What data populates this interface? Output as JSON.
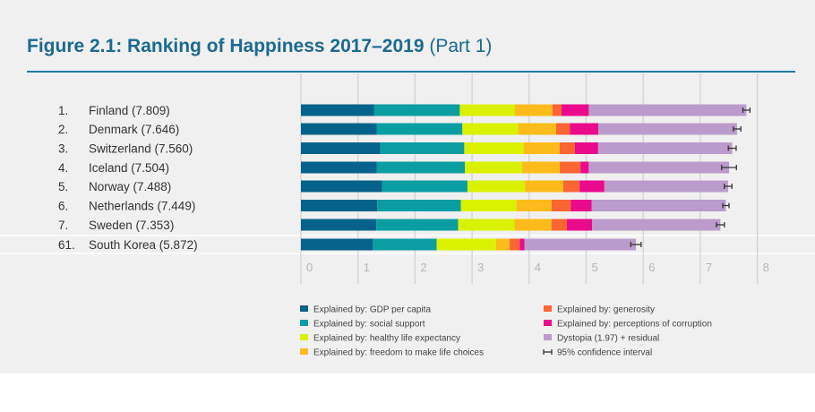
{
  "title": {
    "bold": "Figure 2.1: Ranking of Happiness 2017–2019",
    "light": " (Part 1)"
  },
  "chart_data": {
    "type": "bar",
    "orientation": "horizontal-stacked",
    "title": "Figure 2.1: Ranking of Happiness 2017–2019 (Part 1)",
    "xlabel": "",
    "ylabel": "",
    "xlim": [
      0,
      8
    ],
    "xticks": [
      "0",
      "1",
      "2",
      "3",
      "4",
      "5",
      "6",
      "7",
      "8"
    ],
    "grid": true,
    "legend_position": "bottom",
    "categories": [
      {
        "rank": "1.",
        "label": "Finland (7.809)",
        "score": 7.809,
        "ci": [
          7.747,
          7.871
        ]
      },
      {
        "rank": "2.",
        "label": "Denmark (7.646)",
        "score": 7.646,
        "ci": [
          7.58,
          7.711
        ]
      },
      {
        "rank": "3.",
        "label": "Switzerland (7.560)",
        "score": 7.56,
        "ci": [
          7.491,
          7.629
        ]
      },
      {
        "rank": "4.",
        "label": "Iceland (7.504)",
        "score": 7.504,
        "ci": [
          7.374,
          7.634
        ]
      },
      {
        "rank": "5.",
        "label": "Norway (7.488)",
        "score": 7.488,
        "ci": [
          7.421,
          7.555
        ]
      },
      {
        "rank": "6.",
        "label": "Netherlands (7.449)",
        "score": 7.449,
        "ci": [
          7.394,
          7.504
        ]
      },
      {
        "rank": "7.",
        "label": "Sweden (7.353)",
        "score": 7.353,
        "ci": [
          7.283,
          7.423
        ]
      },
      {
        "rank": "61.",
        "label": "South Korea (5.872)",
        "score": 5.872,
        "ci": [
          5.781,
          5.963
        ],
        "highlight": true
      }
    ],
    "series": [
      {
        "name": "Explained by: GDP per capita",
        "color": "#05628a",
        "values": [
          1.285,
          1.327,
          1.391,
          1.327,
          1.424,
          1.339,
          1.322,
          1.256
        ]
      },
      {
        "name": "Explained by: social support",
        "color": "#0a9ea2",
        "values": [
          1.5,
          1.503,
          1.472,
          1.548,
          1.495,
          1.464,
          1.433,
          1.124
        ]
      },
      {
        "name": "Explained by: healthy life expectancy",
        "color": "#daf200",
        "values": [
          0.961,
          0.979,
          1.041,
          1.001,
          1.008,
          0.976,
          0.986,
          1.04
        ]
      },
      {
        "name": "Explained by: freedom to make life choices",
        "color": "#fbbb1a",
        "values": [
          0.662,
          0.665,
          0.629,
          0.662,
          0.67,
          0.614,
          0.65,
          0.239
        ]
      },
      {
        "name": "Explained by: generosity",
        "color": "#fa6532",
        "values": [
          0.16,
          0.243,
          0.269,
          0.362,
          0.288,
          0.336,
          0.272,
          0.175
        ]
      },
      {
        "name": "Explained by: perceptions of corruption",
        "color": "#ea0a8c",
        "values": [
          0.478,
          0.495,
          0.408,
          0.145,
          0.434,
          0.369,
          0.442,
          0.083
        ]
      },
      {
        "name": "Dystopia (1.97) + residual",
        "color": "#bb9bcb",
        "values": [
          2.762,
          2.432,
          2.35,
          2.46,
          2.168,
          2.35,
          2.248,
          1.955
        ]
      }
    ],
    "ci_legend": "95% confidence interval"
  }
}
